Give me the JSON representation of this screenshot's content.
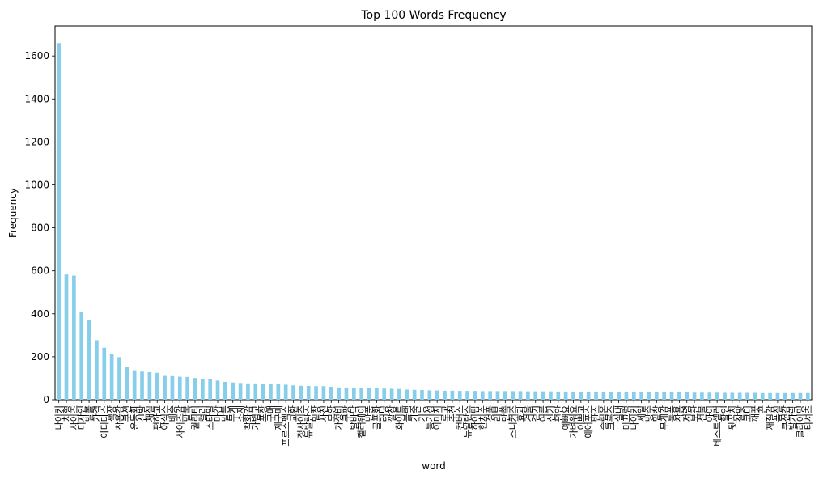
{
  "chart_data": {
    "type": "bar",
    "title": "Top 100 Words Frequency",
    "xlabel": "word",
    "ylabel": "Frequency",
    "ylim": [
      0,
      1740
    ],
    "yticks": [
      0,
      200,
      400,
      600,
      800,
      1000,
      1200,
      1400,
      1600
    ],
    "grid": false,
    "bar_color": "#87CEEB",
    "categories": [
      "나이키",
      "치형",
      "사이즈",
      "디자인",
      "발볼",
      "가격",
      "아디다스",
      "색상",
      "착용감",
      "쿠션",
      "운동화",
      "신발",
      "재질",
      "편하고",
      "아식스",
      "배송",
      "사이즈감",
      "발목",
      "퀄리티",
      "컬러",
      "스타일",
      "마감",
      "발등",
      "무게",
      "소재",
      "착화감",
      "가볍고",
      "포장",
      "구매",
      "재구매",
      "프로스펙스",
      "교환",
      "정사이즈",
      "뉴발란스",
      "밑창",
      "사진",
      "모양",
      "가성비",
      "쿠팡",
      "발바닥",
      "캘러웨이",
      "반품",
      "골프화",
      "러닝",
      "깔창",
      "화이트",
      "블랙",
      "가죽",
      "기능",
      "통기성",
      "이미지",
      "로고",
      "추천",
      "컨버스",
      "뉴발란스",
      "하이탑",
      "한치수",
      "정품",
      "리뷰",
      "만족",
      "스니커즈",
      "효과",
      "겨울",
      "걷기",
      "여름",
      "신기",
      "편안",
      "예뻐요",
      "가벼워요",
      "이쁘고",
      "에어포스",
      "반스",
      "슬립온",
      "크록스",
      "실내",
      "미끄럼",
      "나이키",
      "세일",
      "방수",
      "밑창",
      "무게감",
      "통풍",
      "착용",
      "저렴",
      "보관",
      "선물",
      "아이",
      "베스트셀러",
      "할인",
      "뒷꿈치",
      "잘맞",
      "코디",
      "깨끗",
      "끈",
      "재질감",
      "품질",
      "쿠션감",
      "발가락",
      "클라이밍",
      "티셔츠"
    ],
    "values": [
      1660,
      583,
      578,
      407,
      369,
      277,
      242,
      212,
      198,
      154,
      137,
      131,
      128,
      125,
      111,
      110,
      107,
      106,
      101,
      98,
      97,
      89,
      83,
      80,
      78,
      76,
      76,
      75,
      75,
      74,
      70,
      67,
      65,
      64,
      63,
      63,
      60,
      57,
      56,
      56,
      56,
      55,
      53,
      52,
      51,
      50,
      47,
      46,
      45,
      44,
      43,
      42,
      42,
      41,
      41,
      41,
      40,
      40,
      40,
      40,
      40,
      40,
      39,
      39,
      39,
      39,
      38,
      38,
      38,
      37,
      37,
      37,
      37,
      36,
      36,
      36,
      36,
      35,
      35,
      35,
      34,
      34,
      34,
      34,
      33,
      33,
      33,
      33,
      32,
      32,
      32,
      32,
      32,
      31,
      31,
      31,
      31,
      31,
      31,
      31
    ]
  }
}
